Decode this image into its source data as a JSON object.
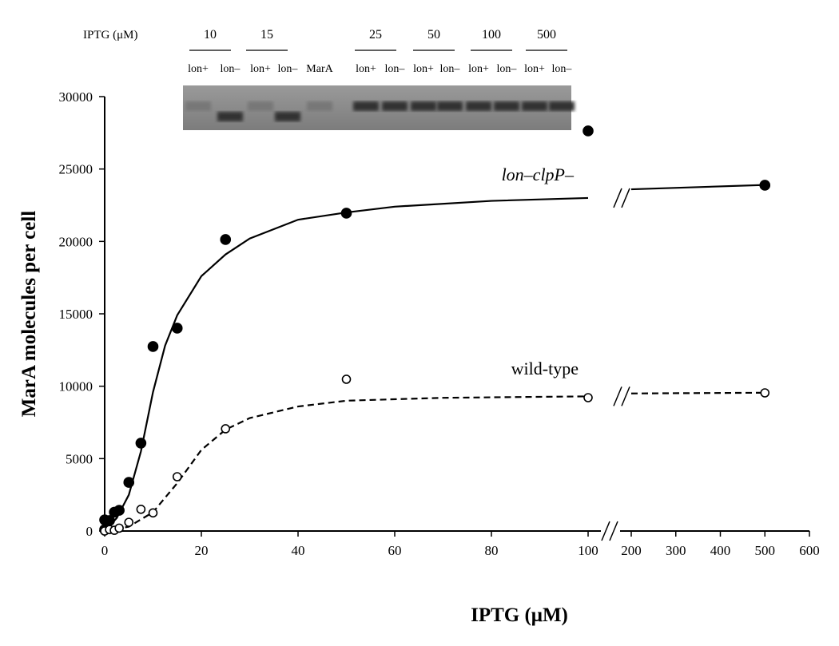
{
  "chart_data": {
    "type": "scatter",
    "y_label": "MarA molecules per cell",
    "x_label": "IPTG  (μM)",
    "ylim": [
      0,
      30000
    ],
    "yticks": [
      0,
      5000,
      10000,
      15000,
      20000,
      25000,
      30000
    ],
    "x_segments": [
      {
        "xlim": [
          0,
          100
        ],
        "xticks": [
          0,
          20,
          40,
          60,
          80,
          100
        ]
      },
      {
        "xlim": [
          200,
          600
        ],
        "xticks": [
          200,
          300,
          400,
          500,
          600
        ]
      }
    ],
    "series": [
      {
        "name": "lon–clpP–",
        "marker": "filled",
        "color": "#000000",
        "dash": false,
        "x": [
          0,
          0,
          1,
          2,
          3,
          5,
          7.5,
          10,
          15,
          25,
          50,
          100,
          500
        ],
        "values": [
          770,
          100,
          720,
          1300,
          1430,
          3360,
          6070,
          12740,
          14010,
          20130,
          21950,
          27630,
          23880
        ],
        "fit": [
          {
            "x": [
              0,
              2.5,
              5,
              7.5,
              10,
              12.5,
              15,
              20,
              25,
              30,
              40,
              50,
              60,
              80,
              100
            ],
            "values": [
              0,
              900,
              2500,
              5500,
              9600,
              12800,
              14900,
              17600,
              19100,
              20200,
              21500,
              22000,
              22400,
              22800,
              23000
            ]
          },
          {
            "x": [
              200,
              500
            ],
            "values": [
              23600,
              23900
            ]
          }
        ]
      },
      {
        "name": "wild-type",
        "marker": "open",
        "color": "#000000",
        "dash": true,
        "x": [
          0,
          1,
          2,
          3,
          5,
          7.5,
          10,
          15,
          25,
          50,
          100,
          500
        ],
        "values": [
          0,
          100,
          50,
          200,
          600,
          1500,
          1250,
          3750,
          7060,
          10480,
          9210,
          9540
        ],
        "fit": [
          {
            "x": [
              0,
              5,
              10,
              15,
              20,
              25,
              30,
              40,
              50,
              70,
              100
            ],
            "values": [
              0,
              300,
              1300,
              3300,
              5600,
              7000,
              7800,
              8600,
              9000,
              9200,
              9300
            ]
          },
          {
            "x": [
              200,
              500
            ],
            "values": [
              9500,
              9550
            ]
          }
        ]
      }
    ],
    "inset": {
      "label": "IPTG (μM)",
      "concentrations": [
        "10",
        "15",
        "25",
        "50",
        "100",
        "500"
      ],
      "lanes": [
        "lon+",
        "lon–",
        "lon+",
        "lon–",
        "MarA",
        "lon+",
        "lon–",
        "lon+",
        "lon–",
        "lon+",
        "lon–",
        "lon+",
        "lon–"
      ]
    }
  }
}
